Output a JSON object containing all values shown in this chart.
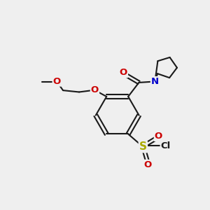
{
  "bg_color": "#efefef",
  "bond_color": "#1a1a1a",
  "O_color": "#cc0000",
  "N_color": "#0000cc",
  "S_color": "#aaaa00",
  "lw": 1.5,
  "figsize": [
    3.0,
    3.0
  ],
  "dpi": 100,
  "xlim": [
    0,
    10
  ],
  "ylim": [
    0,
    10
  ]
}
